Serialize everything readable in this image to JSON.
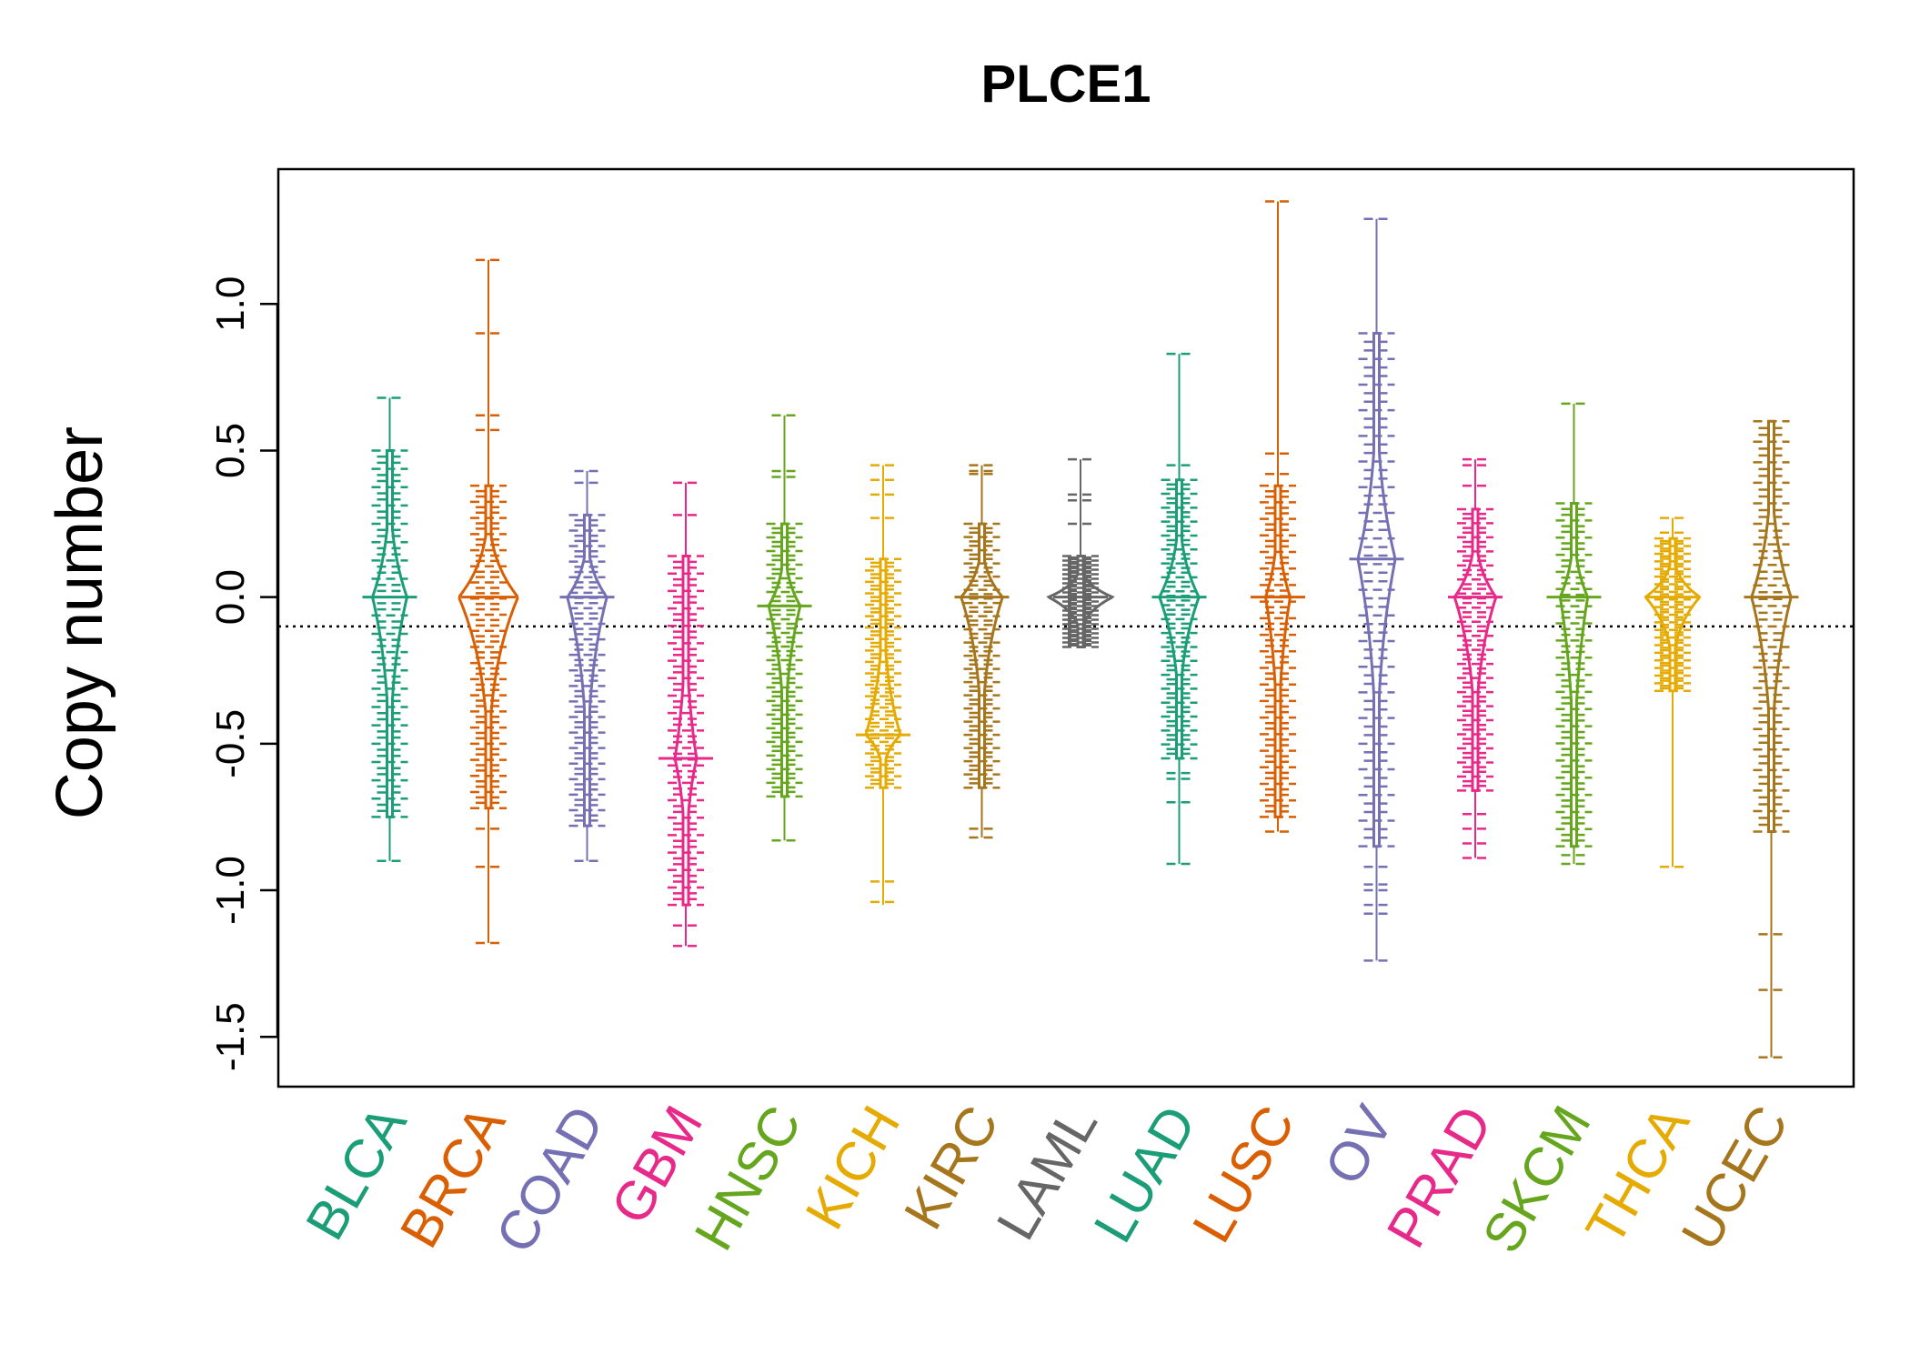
{
  "chart_data": {
    "type": "beanplot",
    "title": "PLCE1",
    "xlabel": "",
    "ylabel": "Copy number",
    "ylim": [
      -1.67,
      1.46
    ],
    "yticks": [
      -1.5,
      -1.0,
      -0.5,
      0.0,
      0.5,
      1.0
    ],
    "ytick_labels": [
      "-1.5",
      "-1.0",
      "-0.5",
      "0.0",
      "0.5",
      "1.0"
    ],
    "reference_line": -0.1,
    "categories": [
      "BLCA",
      "BRCA",
      "COAD",
      "GBM",
      "HNSC",
      "KICH",
      "KIRC",
      "LAML",
      "LUAD",
      "LUSC",
      "OV",
      "PRAD",
      "SKCM",
      "THCA",
      "UCEC"
    ],
    "colors": [
      "#1b9e77",
      "#d95f02",
      "#7570b3",
      "#e7298a",
      "#66a61e",
      "#e6ab02",
      "#a6761d",
      "#666666",
      "#1b9e77",
      "#d95f02",
      "#7570b3",
      "#e7298a",
      "#66a61e",
      "#e6ab02",
      "#a6761d"
    ],
    "series": [
      {
        "name": "BLCA",
        "median": 0.0,
        "range": [
          -0.9,
          0.68
        ],
        "body": [
          -0.75,
          0.5
        ],
        "maxwidth": 0.35,
        "outliers": [
          0.68,
          -0.9
        ]
      },
      {
        "name": "BRCA",
        "median": 0.0,
        "range": [
          -1.18,
          1.15
        ],
        "body": [
          -0.72,
          0.38
        ],
        "maxwidth": 0.6,
        "outliers": [
          1.15,
          0.9,
          0.62,
          0.57,
          -0.79,
          -0.92,
          -1.18
        ]
      },
      {
        "name": "COAD",
        "median": 0.0,
        "range": [
          -0.9,
          0.43
        ],
        "body": [
          -0.78,
          0.28
        ],
        "maxwidth": 0.4,
        "outliers": [
          0.43,
          0.39,
          -0.9
        ]
      },
      {
        "name": "GBM",
        "median": -0.55,
        "range": [
          -1.19,
          0.39
        ],
        "body": [
          -1.05,
          0.14
        ],
        "maxwidth": 0.22,
        "outliers": [
          0.39,
          0.28,
          -1.12,
          -1.19
        ]
      },
      {
        "name": "HNSC",
        "median": -0.03,
        "range": [
          -0.83,
          0.62
        ],
        "body": [
          -0.68,
          0.25
        ],
        "maxwidth": 0.32,
        "outliers": [
          0.62,
          0.43,
          0.41,
          -0.83
        ]
      },
      {
        "name": "KICH",
        "median": -0.47,
        "range": [
          -1.05,
          0.45
        ],
        "body": [
          -0.65,
          0.13
        ],
        "maxwidth": 0.35,
        "outliers": [
          0.45,
          0.4,
          0.35,
          0.27,
          -0.97,
          -1.04
        ]
      },
      {
        "name": "KIRC",
        "median": 0.0,
        "range": [
          -0.82,
          0.45
        ],
        "body": [
          -0.65,
          0.25
        ],
        "maxwidth": 0.42,
        "outliers": [
          0.45,
          0.43,
          0.42,
          -0.79,
          -0.82
        ]
      },
      {
        "name": "LAML",
        "median": 0.0,
        "range": [
          -0.17,
          0.47
        ],
        "body": [
          -0.17,
          0.14
        ],
        "maxwidth": 0.65,
        "outliers": [
          0.47,
          0.35,
          0.33,
          0.25
        ]
      },
      {
        "name": "LUAD",
        "median": 0.0,
        "range": [
          -0.91,
          0.83
        ],
        "body": [
          -0.55,
          0.4
        ],
        "maxwidth": 0.4,
        "outliers": [
          0.83,
          0.45,
          -0.6,
          -0.62,
          -0.7,
          -0.91
        ]
      },
      {
        "name": "LUSC",
        "median": 0.0,
        "range": [
          -0.8,
          1.35
        ],
        "body": [
          -0.75,
          0.38
        ],
        "maxwidth": 0.25,
        "outliers": [
          1.35,
          0.49,
          0.42,
          -0.8
        ]
      },
      {
        "name": "OV",
        "median": 0.13,
        "range": [
          -1.24,
          1.29
        ],
        "body": [
          -0.85,
          0.9
        ],
        "maxwidth": 0.38,
        "outliers": [
          1.29,
          -0.92,
          -0.98,
          -1.0,
          -1.05,
          -1.08,
          -1.24
        ]
      },
      {
        "name": "PRAD",
        "median": 0.0,
        "range": [
          -0.89,
          0.47
        ],
        "body": [
          -0.66,
          0.3
        ],
        "maxwidth": 0.42,
        "outliers": [
          0.47,
          0.45,
          0.38,
          -0.74,
          -0.79,
          -0.84,
          -0.89
        ]
      },
      {
        "name": "SKCM",
        "median": 0.0,
        "range": [
          -0.91,
          0.66
        ],
        "body": [
          -0.85,
          0.32
        ],
        "maxwidth": 0.28,
        "outliers": [
          0.66,
          -0.88,
          -0.91
        ]
      },
      {
        "name": "THCA",
        "median": 0.0,
        "range": [
          -0.92,
          0.27
        ],
        "body": [
          -0.32,
          0.2
        ],
        "maxwidth": 0.55,
        "outliers": [
          0.27,
          0.22,
          -0.92
        ]
      },
      {
        "name": "UCEC",
        "median": 0.0,
        "range": [
          -1.57,
          0.6
        ],
        "body": [
          -0.8,
          0.6
        ],
        "maxwidth": 0.4,
        "outliers": [
          -1.15,
          -1.34,
          -1.57
        ]
      }
    ]
  }
}
